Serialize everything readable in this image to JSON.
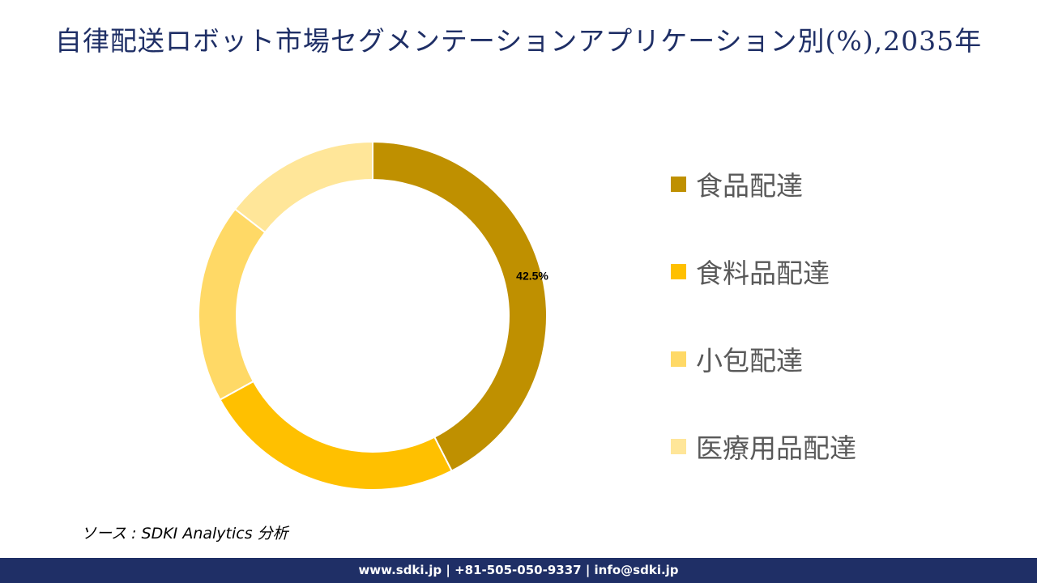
{
  "title": "自律配送ロボット市場セグメンテーションアプリケーション別(%),2035年",
  "chart_data": {
    "type": "pie",
    "variant": "donut",
    "title": "自律配送ロボット市場セグメンテーションアプリケーション別(%),2035年",
    "categories": [
      "食品配達",
      "食料品配達",
      "小包配達",
      "医療用品配達"
    ],
    "values": [
      42.5,
      24.5,
      18.5,
      14.5
    ],
    "data_labels": [
      "42.5%",
      null,
      null,
      null
    ],
    "colors": [
      "#BF9000",
      "#FFC000",
      "#FFD966",
      "#FFE699"
    ],
    "legend_position": "right"
  },
  "source": "ソース : SDKI Analytics 分析",
  "footer": {
    "website": "www.sdki.jp",
    "separator": "|",
    "phone": "+81-505-050-9337",
    "email": "info@sdki.jp"
  }
}
